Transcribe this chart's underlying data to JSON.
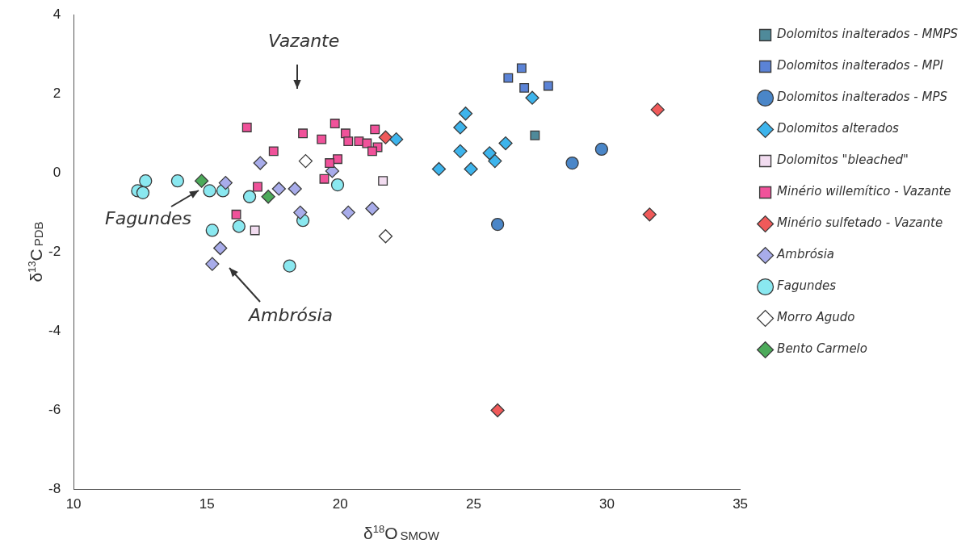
{
  "chart_data": {
    "type": "scatter",
    "xlabel": "δ$^{18}$O$_{SMOW}$",
    "ylabel": "δ$^{13}$C$_{PDB}$",
    "xlim": [
      10,
      35
    ],
    "xticks": [
      10,
      15,
      20,
      25,
      30,
      35
    ],
    "ylim": [
      -8,
      4
    ],
    "yticks": [
      -8,
      -6,
      -4,
      -2,
      0,
      2,
      4
    ],
    "grid": false,
    "legend": "right",
    "annotations": [
      "Vazante",
      "Fagundes",
      "Ambrósia"
    ],
    "series": [
      {
        "name": "Dolomitos inalterados - MMPS",
        "color": "#4f8a9a",
        "marker": "square",
        "x": [
          27.3
        ],
        "values": [
          0.95
        ]
      },
      {
        "name": "Dolomitos inalterados - MPI",
        "color": "#5b83d6",
        "marker": "square",
        "x": [
          26.3,
          26.8,
          26.9,
          27.8
        ],
        "values": [
          2.4,
          2.65,
          2.15,
          2.2
        ]
      },
      {
        "name": "Dolomitos inalterados - MPS",
        "color": "#4a86c8",
        "marker": "circle",
        "x": [
          25.9,
          28.7,
          29.8
        ],
        "values": [
          -1.3,
          0.25,
          0.6
        ]
      },
      {
        "name": "Dolomitos alterados",
        "color": "#3db4ec",
        "marker": "diamond",
        "x": [
          22.1,
          23.7,
          24.5,
          24.5,
          24.7,
          24.9,
          25.6,
          25.8,
          26.2,
          27.2
        ],
        "values": [
          0.85,
          0.1,
          1.15,
          0.55,
          1.5,
          0.1,
          0.5,
          0.3,
          0.75,
          1.9
        ]
      },
      {
        "name": "Dolomitos \"bleached\"",
        "color": "#f2dcf0",
        "marker": "square",
        "x": [
          16.8,
          21.6
        ],
        "values": [
          -1.45,
          -0.2
        ]
      },
      {
        "name": "Minério willemítico - Vazante",
        "color": "#f0529a",
        "marker": "square",
        "x": [
          16.5,
          16.1,
          16.9,
          17.5,
          18.6,
          19.3,
          19.8,
          19.9,
          19.6,
          19.4,
          20.2,
          20.3,
          20.7,
          21.0,
          21.3,
          21.4,
          21.2
        ],
        "values": [
          1.15,
          -1.05,
          -0.35,
          0.55,
          1.0,
          0.85,
          1.25,
          0.35,
          0.25,
          -0.15,
          1.0,
          0.8,
          0.8,
          0.75,
          1.1,
          0.65,
          0.55
        ]
      },
      {
        "name": "Minério sulfetado - Vazante",
        "color": "#f05a5a",
        "marker": "diamond",
        "x": [
          21.7,
          31.9,
          31.6,
          25.9
        ],
        "values": [
          0.9,
          1.6,
          -1.05,
          -6.0
        ]
      },
      {
        "name": "Ambrósia",
        "color": "#a8acea",
        "marker": "diamond",
        "x": [
          15.2,
          15.5,
          15.7,
          17.0,
          17.7,
          18.3,
          18.5,
          19.7,
          20.3,
          21.2
        ],
        "values": [
          -2.3,
          -1.9,
          -0.25,
          0.25,
          -0.4,
          -0.4,
          -1.0,
          0.05,
          -1.0,
          -0.9
        ]
      },
      {
        "name": "Fagundes",
        "color": "#8ae8f0",
        "marker": "circle",
        "x": [
          12.4,
          12.6,
          12.7,
          13.9,
          15.1,
          15.2,
          15.6,
          16.2,
          16.6,
          18.1,
          18.6,
          19.9
        ],
        "values": [
          -0.45,
          -0.5,
          -0.2,
          -0.2,
          -0.45,
          -1.45,
          -0.45,
          -1.35,
          -0.6,
          -2.35,
          -1.2,
          -0.3
        ]
      },
      {
        "name": "Morro Agudo",
        "color": "#ffffff",
        "marker": "diamond",
        "x": [
          18.7,
          21.7
        ],
        "values": [
          0.3,
          -1.6
        ]
      },
      {
        "name": "Bento Carmelo",
        "color": "#4caa5a",
        "marker": "diamond",
        "x": [
          14.8,
          17.3
        ],
        "values": [
          -0.2,
          -0.6
        ]
      }
    ]
  }
}
